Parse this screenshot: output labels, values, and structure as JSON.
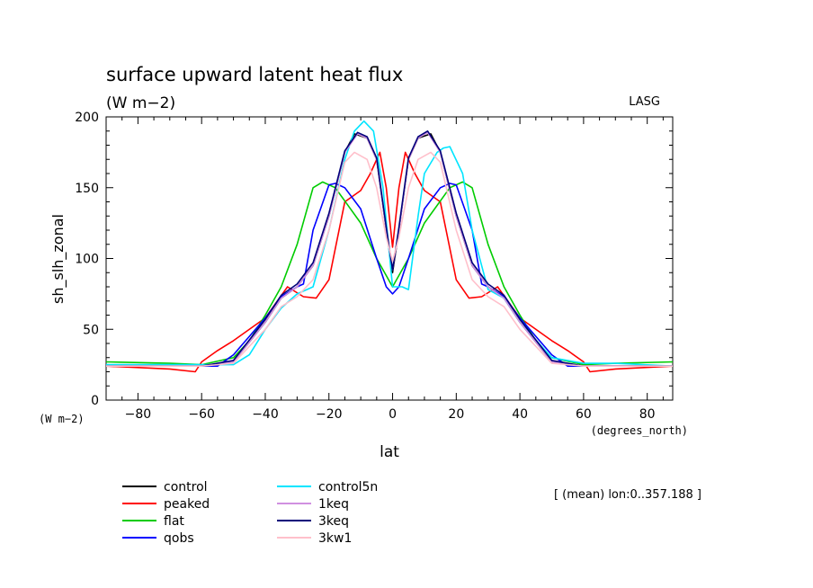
{
  "chart_data": {
    "type": "line",
    "title": "surface upward latent heat flux",
    "subtitle": "(W m−2)",
    "source_label": "LASG",
    "ylabel": "sh_slh_zonal",
    "xlabel": "lat",
    "y_unit": "(W m−2)",
    "x_unit": "(degrees_north)",
    "footnote": "[ (mean) lon:0..357.188 ]",
    "xlim": [
      -90,
      88
    ],
    "ylim": [
      0,
      200
    ],
    "x_ticks": [
      -80,
      -60,
      -40,
      -20,
      0,
      20,
      40,
      60,
      80
    ],
    "x_tick_labels": [
      "−80",
      "−60",
      "−40",
      "−20",
      "0",
      "20",
      "40",
      "60",
      "80"
    ],
    "y_ticks": [
      0,
      50,
      100,
      150,
      200
    ],
    "y_tick_labels": [
      "0",
      "50",
      "100",
      "150",
      "200"
    ],
    "grid": false,
    "legend_position": "bottom-left",
    "series": [
      {
        "name": "control",
        "color": "#000000",
        "x": [
          -90,
          -70,
          -60,
          -50,
          -40,
          -35,
          -30,
          -25,
          -20,
          -15,
          -12,
          -8,
          -5,
          -2,
          0,
          2,
          5,
          8,
          12,
          15,
          20,
          25,
          30,
          35,
          40,
          50,
          60,
          70,
          88
        ],
        "y": [
          24,
          24,
          24,
          27,
          55,
          72,
          80,
          95,
          130,
          175,
          188,
          185,
          170,
          120,
          90,
          120,
          170,
          185,
          188,
          175,
          130,
          95,
          80,
          72,
          55,
          27,
          24,
          24,
          24
        ]
      },
      {
        "name": "peaked",
        "color": "#ff0000",
        "x": [
          -90,
          -70,
          -62,
          -60,
          -55,
          -50,
          -40,
          -33,
          -28,
          -24,
          -20,
          -15,
          -10,
          -7,
          -4,
          -2,
          0,
          2,
          4,
          7,
          10,
          15,
          20,
          24,
          28,
          33,
          40,
          50,
          55,
          60,
          62,
          70,
          88
        ],
        "y": [
          24,
          22,
          20,
          27,
          35,
          42,
          58,
          80,
          73,
          72,
          85,
          140,
          148,
          160,
          175,
          150,
          108,
          150,
          175,
          160,
          148,
          140,
          85,
          72,
          73,
          80,
          58,
          42,
          35,
          27,
          20,
          22,
          24
        ]
      },
      {
        "name": "flat",
        "color": "#00cc00",
        "x": [
          -90,
          -70,
          -60,
          -50,
          -45,
          -40,
          -35,
          -30,
          -25,
          -22,
          -18,
          -10,
          -5,
          0,
          5,
          10,
          18,
          22,
          25,
          30,
          35,
          40,
          45,
          50,
          60,
          70,
          88
        ],
        "y": [
          27,
          26,
          25,
          30,
          42,
          60,
          80,
          110,
          150,
          154,
          150,
          125,
          100,
          80,
          100,
          125,
          150,
          154,
          150,
          110,
          80,
          60,
          42,
          30,
          25,
          26,
          27
        ]
      },
      {
        "name": "qobs",
        "color": "#0000ff",
        "x": [
          -90,
          -70,
          -60,
          -55,
          -50,
          -45,
          -40,
          -35,
          -30,
          -28,
          -25,
          -20,
          -18,
          -15,
          -10,
          -5,
          -2,
          0,
          2,
          5,
          10,
          15,
          18,
          20,
          25,
          28,
          30,
          35,
          40,
          45,
          50,
          55,
          60,
          70,
          88
        ],
        "y": [
          24,
          24,
          24,
          24,
          32,
          45,
          58,
          73,
          80,
          82,
          120,
          152,
          153,
          150,
          135,
          100,
          80,
          75,
          80,
          100,
          135,
          150,
          153,
          152,
          120,
          82,
          80,
          73,
          58,
          45,
          32,
          24,
          24,
          24,
          24
        ]
      },
      {
        "name": "control5n",
        "color": "#00e5ff",
        "x": [
          -90,
          -70,
          -60,
          -50,
          -45,
          -40,
          -35,
          -30,
          -25,
          -20,
          -15,
          -12,
          -9,
          -6,
          -3,
          0,
          3,
          5,
          8,
          10,
          14,
          16,
          18,
          22,
          25,
          30,
          35,
          40,
          50,
          60,
          70,
          88
        ],
        "y": [
          25,
          25,
          25,
          25,
          32,
          50,
          65,
          75,
          80,
          120,
          170,
          190,
          197,
          190,
          150,
          80,
          80,
          78,
          130,
          160,
          175,
          178,
          179,
          160,
          120,
          78,
          72,
          55,
          30,
          26,
          26,
          24
        ]
      },
      {
        "name": "1keq",
        "color": "#d090e0",
        "x": [
          -90,
          -70,
          -60,
          -50,
          -40,
          -35,
          -30,
          -25,
          -20,
          -15,
          -11,
          -8,
          -5,
          -2,
          0,
          2,
          5,
          8,
          11,
          15,
          20,
          25,
          30,
          35,
          40,
          50,
          60,
          70,
          88
        ],
        "y": [
          24,
          24,
          24,
          27,
          55,
          72,
          80,
          95,
          130,
          175,
          188,
          185,
          170,
          120,
          92,
          120,
          170,
          185,
          189,
          175,
          130,
          95,
          80,
          72,
          55,
          27,
          24,
          24,
          24
        ]
      },
      {
        "name": "3keq",
        "color": "#00007a",
        "x": [
          -90,
          -70,
          -60,
          -50,
          -40,
          -35,
          -30,
          -25,
          -20,
          -15,
          -11,
          -8,
          -5,
          -2,
          0,
          2,
          5,
          8,
          11,
          15,
          20,
          25,
          30,
          35,
          40,
          50,
          60,
          70,
          88
        ],
        "y": [
          24,
          24,
          24,
          28,
          57,
          74,
          82,
          97,
          132,
          176,
          189,
          186,
          171,
          122,
          92,
          122,
          171,
          186,
          190,
          176,
          132,
          97,
          82,
          74,
          57,
          28,
          24,
          24,
          24
        ]
      },
      {
        "name": "3kw1",
        "color": "#ffc0cb",
        "x": [
          -90,
          -70,
          -60,
          -50,
          -40,
          -35,
          -30,
          -25,
          -20,
          -15,
          -12,
          -8,
          -5,
          -2,
          0,
          2,
          5,
          8,
          12,
          15,
          20,
          25,
          30,
          35,
          40,
          50,
          60,
          70,
          88
        ],
        "y": [
          24,
          24,
          24,
          26,
          50,
          66,
          73,
          85,
          120,
          168,
          175,
          170,
          150,
          115,
          98,
          115,
          150,
          170,
          175,
          168,
          120,
          85,
          73,
          66,
          50,
          26,
          24,
          24,
          24
        ]
      }
    ]
  }
}
